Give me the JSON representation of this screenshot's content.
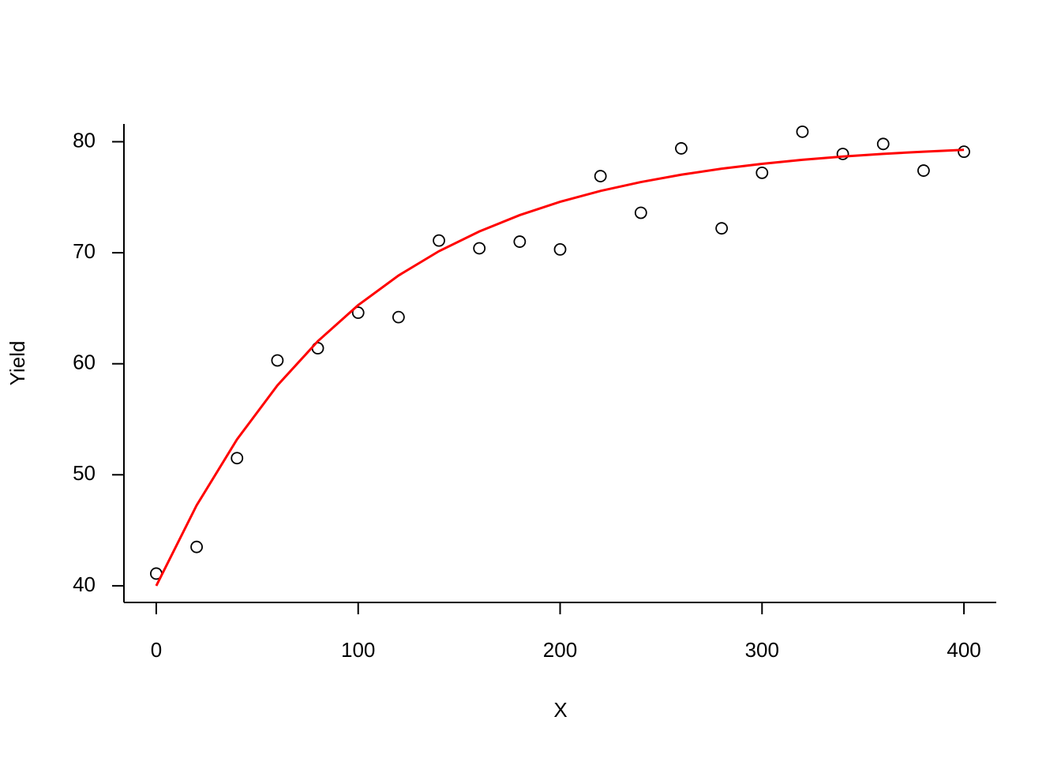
{
  "chart_data": {
    "type": "scatter",
    "x": [
      0,
      20,
      40,
      60,
      80,
      100,
      120,
      140,
      160,
      180,
      200,
      220,
      240,
      260,
      280,
      300,
      320,
      340,
      360,
      380,
      400
    ],
    "series": [
      {
        "color": "#000000",
        "mark": "circle",
        "values": [
          41.1,
          43.5,
          51.5,
          60.3,
          61.4,
          64.6,
          64.2,
          71.1,
          70.4,
          71.0,
          70.3,
          76.9,
          73.6,
          79.4,
          72.2,
          77.2,
          80.9,
          78.9,
          79.8,
          77.4,
          79.1
        ]
      },
      {
        "color": "#ff0000",
        "mark": "line",
        "values": [
          40,
          47.25,
          53.19,
          58.05,
          62.03,
          65.28,
          67.95,
          70.14,
          71.92,
          73.39,
          74.59,
          75.57,
          76.37,
          77.03,
          77.57,
          78.01,
          78.37,
          78.67,
          78.91,
          79.1,
          79.27
        ]
      }
    ],
    "xlabel": "X",
    "ylabel": "Yield",
    "xlim": [
      -16,
      416
    ],
    "ylim": [
      38.5,
      81.6
    ],
    "xticks": [
      0,
      100,
      200,
      300,
      400
    ],
    "yticks": [
      40,
      50,
      60,
      70,
      80
    ],
    "grid": false
  }
}
